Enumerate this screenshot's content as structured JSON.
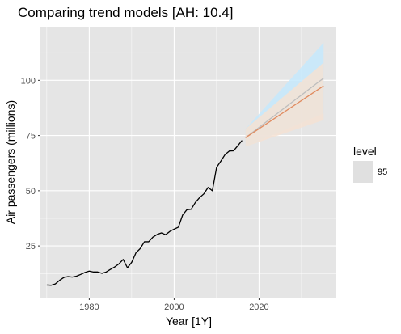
{
  "chart_data": {
    "type": "line",
    "title": "Comparing trend models [AH: 10.4]",
    "xlabel": "Year [1Y]",
    "ylabel": "Air passengers (millions)",
    "xlim": [
      1968.5,
      2038.2
    ],
    "ylim": [
      1.6,
      124.3
    ],
    "x_ticks": [
      1980,
      2000,
      2020
    ],
    "y_ticks": [
      25,
      50,
      75,
      100
    ],
    "grid": true,
    "legend": {
      "title": "level",
      "position": "right",
      "entries": [
        "95"
      ]
    },
    "colors": {
      "panel": "#e5e5e5",
      "grid": "#ffffff",
      "history": "#000000",
      "forecast_a": "#bdbdbd",
      "forecast_b": "#e08b60",
      "interval_a": "#c6e9fd",
      "interval_b": "#f4e2d4",
      "legend_key": "#e0e0e0"
    },
    "series": [
      {
        "role": "history",
        "x": [
          1970,
          1971,
          1972,
          1973,
          1974,
          1975,
          1976,
          1977,
          1978,
          1979,
          1980,
          1981,
          1982,
          1983,
          1984,
          1985,
          1986,
          1987,
          1988,
          1989,
          1990,
          1991,
          1992,
          1993,
          1994,
          1995,
          1996,
          1997,
          1998,
          1999,
          2000,
          2001,
          2002,
          2003,
          2004,
          2005,
          2006,
          2007,
          2008,
          2009,
          2010,
          2011,
          2012,
          2013,
          2014,
          2015,
          2016
        ],
        "values": [
          7.3,
          7.2,
          7.8,
          9.4,
          10.7,
          11.1,
          10.9,
          11.3,
          12.1,
          13.0,
          13.6,
          13.2,
          13.2,
          12.6,
          13.2,
          14.4,
          15.5,
          16.9,
          18.9,
          15.1,
          17.6,
          21.9,
          23.8,
          26.9,
          26.9,
          29.0,
          30.2,
          30.9,
          30.1,
          31.6,
          32.6,
          33.5,
          39.0,
          41.4,
          41.6,
          44.7,
          46.9,
          48.6,
          51.5,
          50.0,
          60.6,
          63.4,
          66.4,
          68.0,
          68.1,
          70.4,
          72.8
        ]
      },
      {
        "role": "forecast_a",
        "x": [
          2016.8,
          2035.2
        ],
        "values": [
          74.0,
          101.0
        ],
        "lower": [
          70.0,
          85.0
        ],
        "upper": [
          78.0,
          117.0
        ]
      },
      {
        "role": "forecast_b",
        "x": [
          2016.8,
          2035.2
        ],
        "values": [
          74.0,
          97.5
        ],
        "lower": [
          70.0,
          82.0
        ],
        "upper": [
          78.0,
          108.0
        ]
      }
    ]
  }
}
